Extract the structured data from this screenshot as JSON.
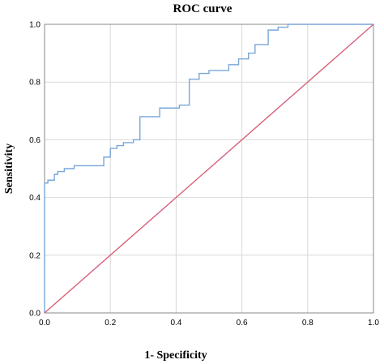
{
  "chart_data": {
    "type": "line",
    "title": "ROC curve",
    "xlabel": "1-  Specificity",
    "ylabel": "Sensitivity",
    "xlim": [
      0,
      1
    ],
    "ylim": [
      0,
      1
    ],
    "xticks": [
      "0.0",
      "0.2",
      "0.4",
      "0.6",
      "0.8",
      "1.0"
    ],
    "yticks": [
      "0.0",
      "0.2",
      "0.4",
      "0.6",
      "0.8",
      "1.0"
    ],
    "grid": true,
    "series": [
      {
        "color": "#7aa6d8",
        "step": true,
        "x": [
          0,
          0,
          0.01,
          0.01,
          0.03,
          0.03,
          0.04,
          0.04,
          0.06,
          0.06,
          0.09,
          0.09,
          0.18,
          0.18,
          0.2,
          0.2,
          0.22,
          0.22,
          0.24,
          0.24,
          0.27,
          0.27,
          0.29,
          0.29,
          0.35,
          0.35,
          0.41,
          0.41,
          0.44,
          0.44,
          0.47,
          0.47,
          0.5,
          0.5,
          0.56,
          0.56,
          0.59,
          0.59,
          0.62,
          0.62,
          0.64,
          0.64,
          0.68,
          0.68,
          0.71,
          0.71,
          0.74,
          0.74,
          1.0
        ],
        "y": [
          0,
          0.45,
          0.45,
          0.46,
          0.46,
          0.48,
          0.48,
          0.49,
          0.49,
          0.5,
          0.5,
          0.51,
          0.51,
          0.54,
          0.54,
          0.57,
          0.57,
          0.58,
          0.58,
          0.59,
          0.59,
          0.6,
          0.6,
          0.68,
          0.68,
          0.71,
          0.71,
          0.72,
          0.72,
          0.81,
          0.81,
          0.83,
          0.83,
          0.84,
          0.84,
          0.86,
          0.86,
          0.88,
          0.88,
          0.9,
          0.9,
          0.93,
          0.93,
          0.98,
          0.98,
          0.99,
          0.99,
          1.0,
          1.0
        ]
      },
      {
        "color": "#d9607a",
        "x": [
          0,
          1
        ],
        "y": [
          0,
          1
        ]
      }
    ]
  }
}
